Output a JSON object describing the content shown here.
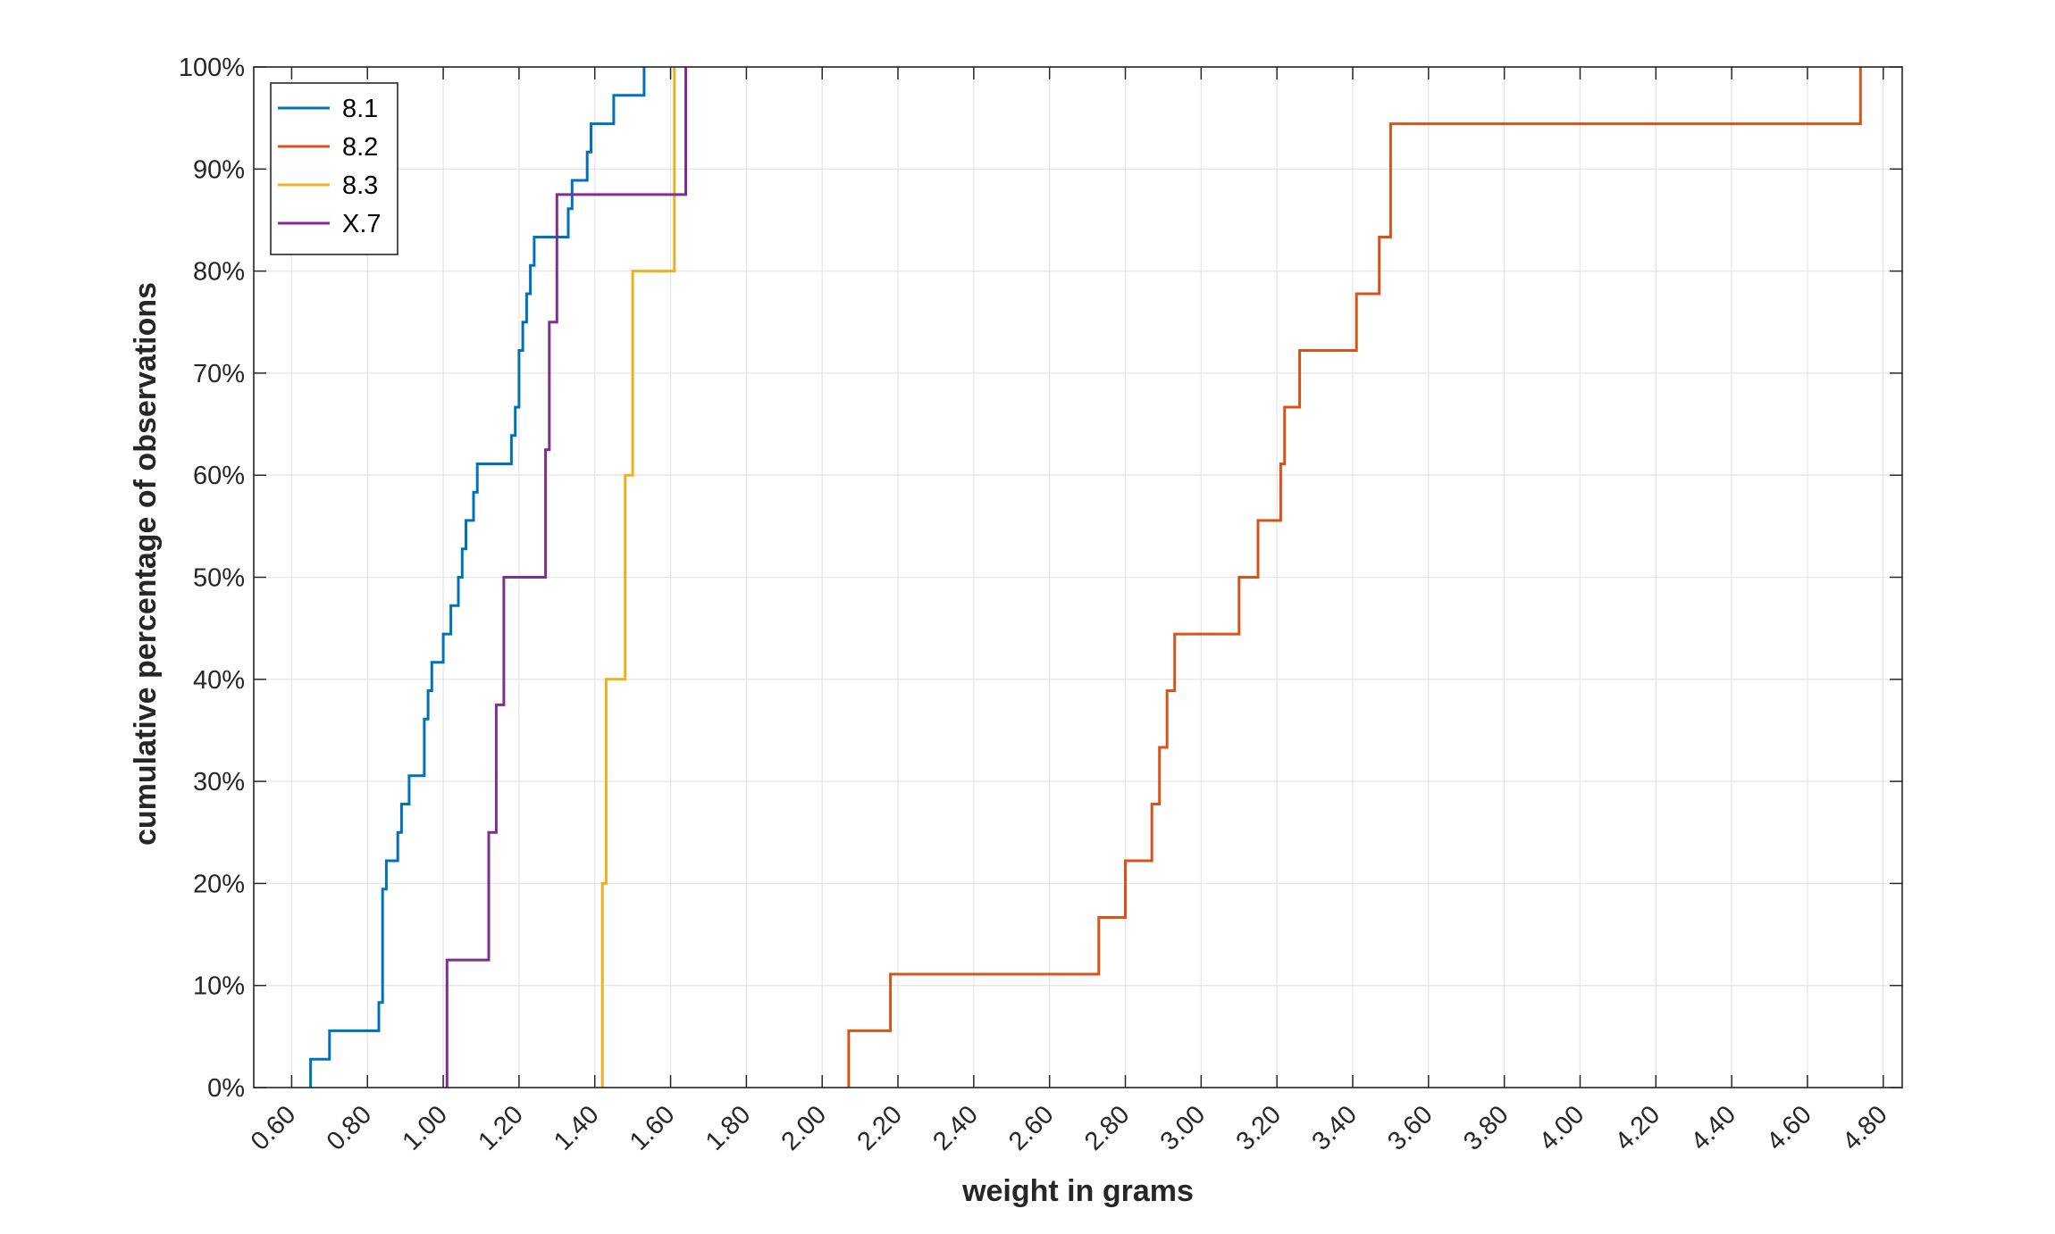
{
  "chart_data": {
    "type": "line",
    "step": true,
    "xlabel": "weight in grams",
    "ylabel": "cumulative percentage of observations",
    "xlim": [
      0.5,
      4.85
    ],
    "ylim": [
      0,
      100
    ],
    "xticks": [
      0.6,
      0.8,
      1.0,
      1.2,
      1.4,
      1.6,
      1.8,
      2.0,
      2.2,
      2.4,
      2.6,
      2.8,
      3.0,
      3.2,
      3.4,
      3.6,
      3.8,
      4.0,
      4.2,
      4.4,
      4.6,
      4.8
    ],
    "xtick_labels": [
      "0.60",
      "0.80",
      "1.00",
      "1.20",
      "1.40",
      "1.60",
      "1.80",
      "2.00",
      "2.20",
      "2.40",
      "2.60",
      "2.80",
      "3.00",
      "3.20",
      "3.40",
      "3.60",
      "3.80",
      "4.00",
      "4.20",
      "4.40",
      "4.60",
      "4.80"
    ],
    "yticks": [
      0,
      10,
      20,
      30,
      40,
      50,
      60,
      70,
      80,
      90,
      100
    ],
    "ytick_labels": [
      "0%",
      "10%",
      "20%",
      "30%",
      "40%",
      "50%",
      "60%",
      "70%",
      "80%",
      "90%",
      "100%"
    ],
    "grid": true,
    "legend_position": "top-left",
    "series": [
      {
        "name": "8.1",
        "color": "#0072BD",
        "x": [
          0.65,
          0.7,
          0.83,
          0.84,
          0.85,
          0.88,
          0.89,
          0.91,
          0.95,
          0.96,
          0.97,
          1.0,
          1.02,
          1.04,
          1.05,
          1.06,
          1.08,
          1.09,
          1.1,
          1.18,
          1.19,
          1.2,
          1.21,
          1.22,
          1.23,
          1.24,
          1.32,
          1.33,
          1.34,
          1.38,
          1.39,
          1.4,
          1.45,
          1.53
        ],
        "y": [
          2.78,
          5.56,
          8.33,
          19.44,
          22.22,
          25.0,
          27.78,
          30.56,
          36.11,
          38.89,
          41.67,
          44.44,
          47.22,
          50.0,
          52.78,
          55.56,
          58.33,
          61.11,
          61.11,
          63.89,
          66.67,
          72.22,
          75.0,
          77.78,
          80.56,
          83.33,
          83.33,
          86.11,
          88.89,
          91.67,
          94.44,
          94.44,
          97.22,
          100.0
        ]
      },
      {
        "name": "8.2",
        "color": "#D95319",
        "x": [
          2.07,
          2.18,
          2.73,
          2.8,
          2.87,
          2.89,
          2.91,
          2.93,
          3.1,
          3.15,
          3.21,
          3.22,
          3.26,
          3.41,
          3.47,
          3.5,
          4.74
        ],
        "y": [
          5.56,
          11.11,
          16.67,
          22.22,
          27.78,
          33.33,
          38.89,
          44.44,
          50.0,
          55.56,
          61.11,
          66.67,
          72.22,
          77.78,
          83.33,
          94.44,
          100.0
        ]
      },
      {
        "name": "8.3",
        "color": "#EDB120",
        "x": [
          1.42,
          1.43,
          1.48,
          1.5,
          1.61
        ],
        "y": [
          20,
          40,
          60,
          80,
          100
        ]
      },
      {
        "name": "X.7",
        "color": "#7E2F8E",
        "x": [
          1.01,
          1.12,
          1.14,
          1.16,
          1.27,
          1.28,
          1.3,
          1.32,
          1.64
        ],
        "y": [
          12.5,
          25.0,
          37.5,
          50.0,
          62.5,
          75.0,
          87.5,
          87.5,
          100.0
        ]
      }
    ]
  }
}
